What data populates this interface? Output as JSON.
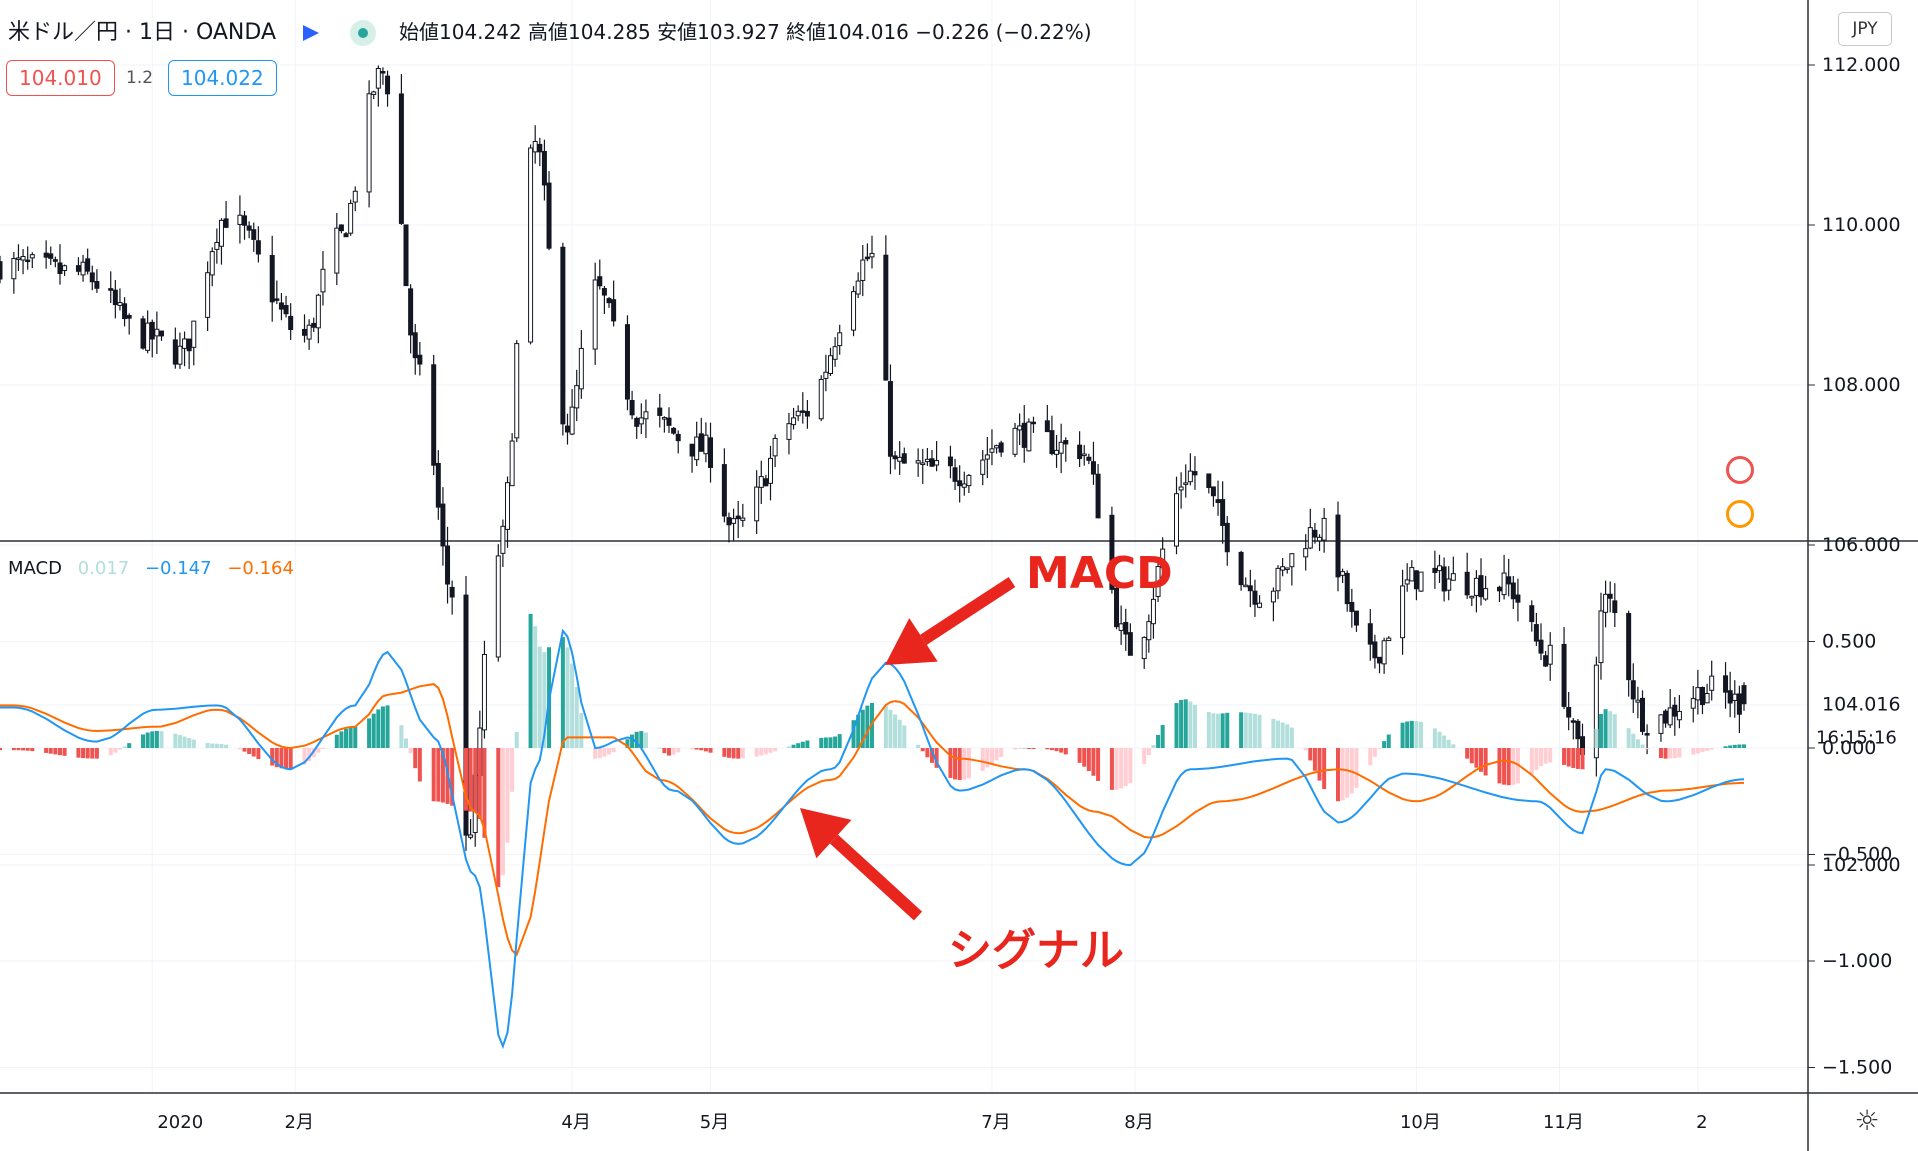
{
  "header": {
    "symbol": "米ドル／円 · 1日 · OANDA",
    "ohlc": "始値104.242 高値104.285 安値103.927 終値104.016 −0.226 (−0.22%)",
    "sell_price": "104.010",
    "spread": "1.2",
    "buy_price": "104.022",
    "currency": "JPY"
  },
  "macd_legend": {
    "name": "MACD",
    "histogram": "0.017",
    "macd": "−0.147",
    "signal": "−0.164"
  },
  "annotations": {
    "macd": "MACD",
    "signal": "シグナル"
  },
  "price_axis": {
    "last_price": "104.016",
    "countdown": "16:15:16",
    "ticks": [
      "112.000",
      "110.000",
      "108.000",
      "106.000",
      "102.000"
    ]
  },
  "macd_axis": {
    "ticks": [
      "0.500",
      "0.000",
      "−0.500",
      "−1.000",
      "−1.500"
    ]
  },
  "time_axis": {
    "labels": [
      "2020",
      "2月",
      "4月",
      "5月",
      "7月",
      "8月",
      "10月",
      "11月",
      "2"
    ]
  },
  "colors": {
    "up": "#131722",
    "down": "#131722",
    "macd_line": "#2196f3",
    "signal_line": "#ff6d00",
    "hist_up_strong": "#26a69a",
    "hist_up_weak": "#b2dfdb",
    "hist_down_strong": "#ef5350",
    "hist_down_weak": "#ffcdd2",
    "annotation": "#e8261e"
  },
  "chart_data": [
    {
      "type": "candlestick",
      "title": "米ドル／円 1日 OANDA",
      "ylim": [
        100.5,
        113
      ],
      "series": [
        {
          "name": "USDJPY",
          "keypoints": [
            [
              "2019-12-02",
              109.5
            ],
            [
              "2019-12-16",
              109.4
            ],
            [
              "2019-12-31",
              108.6
            ],
            [
              "2020-01-07",
              108.4
            ],
            [
              "2020-01-17",
              110.1
            ],
            [
              "2020-02-03",
              108.6
            ],
            [
              "2020-02-10",
              109.8
            ],
            [
              "2020-02-20",
              111.9
            ],
            [
              "2020-02-28",
              108.1
            ],
            [
              "2020-03-06",
              105.4
            ],
            [
              "2020-03-09",
              102.3
            ],
            [
              "2020-03-16",
              105.9
            ],
            [
              "2020-03-24",
              111.0
            ],
            [
              "2020-03-31",
              107.5
            ],
            [
              "2020-04-06",
              109.2
            ],
            [
              "2020-04-16",
              107.6
            ],
            [
              "2020-04-30",
              107.2
            ],
            [
              "2020-05-06",
              106.2
            ],
            [
              "2020-05-20",
              107.6
            ],
            [
              "2020-06-05",
              109.6
            ],
            [
              "2020-06-10",
              107.0
            ],
            [
              "2020-06-24",
              106.9
            ],
            [
              "2020-07-06",
              107.4
            ],
            [
              "2020-07-20",
              107.2
            ],
            [
              "2020-07-31",
              104.7
            ],
            [
              "2020-08-13",
              106.9
            ],
            [
              "2020-08-28",
              105.4
            ],
            [
              "2020-09-10",
              106.2
            ],
            [
              "2020-09-21",
              104.6
            ],
            [
              "2020-10-01",
              105.6
            ],
            [
              "2020-10-20",
              105.5
            ],
            [
              "2020-10-30",
              104.6
            ],
            [
              "2020-11-06",
              103.4
            ],
            [
              "2020-11-11",
              105.3
            ],
            [
              "2020-11-20",
              103.8
            ],
            [
              "2020-12-04",
              104.2
            ],
            [
              "2020-12-11",
              104.016
            ]
          ]
        }
      ],
      "last": {
        "open": 104.242,
        "high": 104.285,
        "low": 103.927,
        "close": 104.016,
        "change": -0.226,
        "change_pct": -0.22
      }
    },
    {
      "type": "line",
      "title": "MACD",
      "ylim": [
        -1.55,
        0.85
      ],
      "series": [
        {
          "name": "MACD",
          "keypoints": [
            [
              "2019-12-02",
              0.19
            ],
            [
              "2019-12-20",
              0.03
            ],
            [
              "2020-01-02",
              0.18
            ],
            [
              "2020-01-15",
              0.2
            ],
            [
              "2020-01-31",
              -0.1
            ],
            [
              "2020-02-14",
              0.2
            ],
            [
              "2020-02-21",
              0.45
            ],
            [
              "2020-03-02",
              0.05
            ],
            [
              "2020-03-11",
              -0.6
            ],
            [
              "2020-03-17",
              -1.4
            ],
            [
              "2020-03-24",
              -0.1
            ],
            [
              "2020-03-30",
              0.55
            ],
            [
              "2020-04-06",
              0.0
            ],
            [
              "2020-04-13",
              0.05
            ],
            [
              "2020-04-23",
              -0.2
            ],
            [
              "2020-05-07",
              -0.45
            ],
            [
              "2020-05-27",
              -0.1
            ],
            [
              "2020-06-08",
              0.4
            ],
            [
              "2020-06-24",
              -0.2
            ],
            [
              "2020-07-08",
              -0.1
            ],
            [
              "2020-07-31",
              -0.55
            ],
            [
              "2020-08-13",
              -0.1
            ],
            [
              "2020-09-03",
              -0.05
            ],
            [
              "2020-09-14",
              -0.35
            ],
            [
              "2020-09-28",
              -0.12
            ],
            [
              "2020-10-27",
              -0.25
            ],
            [
              "2020-11-06",
              -0.4
            ],
            [
              "2020-11-11",
              -0.1
            ],
            [
              "2020-11-24",
              -0.25
            ],
            [
              "2020-12-11",
              -0.147
            ]
          ]
        },
        {
          "name": "Signal",
          "keypoints": [
            [
              "2019-12-02",
              0.2
            ],
            [
              "2019-12-20",
              0.08
            ],
            [
              "2020-01-02",
              0.1
            ],
            [
              "2020-01-15",
              0.18
            ],
            [
              "2020-01-31",
              0.0
            ],
            [
              "2020-02-14",
              0.1
            ],
            [
              "2020-02-21",
              0.25
            ],
            [
              "2020-03-02",
              0.3
            ],
            [
              "2020-03-11",
              -0.3
            ],
            [
              "2020-03-20",
              -0.97
            ],
            [
              "2020-03-31",
              0.05
            ],
            [
              "2020-04-10",
              0.05
            ],
            [
              "2020-04-20",
              -0.15
            ],
            [
              "2020-05-07",
              -0.4
            ],
            [
              "2020-05-27",
              -0.15
            ],
            [
              "2020-06-10",
              0.22
            ],
            [
              "2020-06-24",
              -0.05
            ],
            [
              "2020-07-08",
              -0.1
            ],
            [
              "2020-07-24",
              -0.3
            ],
            [
              "2020-08-04",
              -0.42
            ],
            [
              "2020-08-20",
              -0.25
            ],
            [
              "2020-09-14",
              -0.1
            ],
            [
              "2020-10-01",
              -0.25
            ],
            [
              "2020-10-20",
              -0.06
            ],
            [
              "2020-11-06",
              -0.3
            ],
            [
              "2020-11-24",
              -0.2
            ],
            [
              "2020-12-11",
              -0.164
            ]
          ]
        },
        {
          "name": "Histogram",
          "latest": 0.017
        }
      ]
    }
  ]
}
